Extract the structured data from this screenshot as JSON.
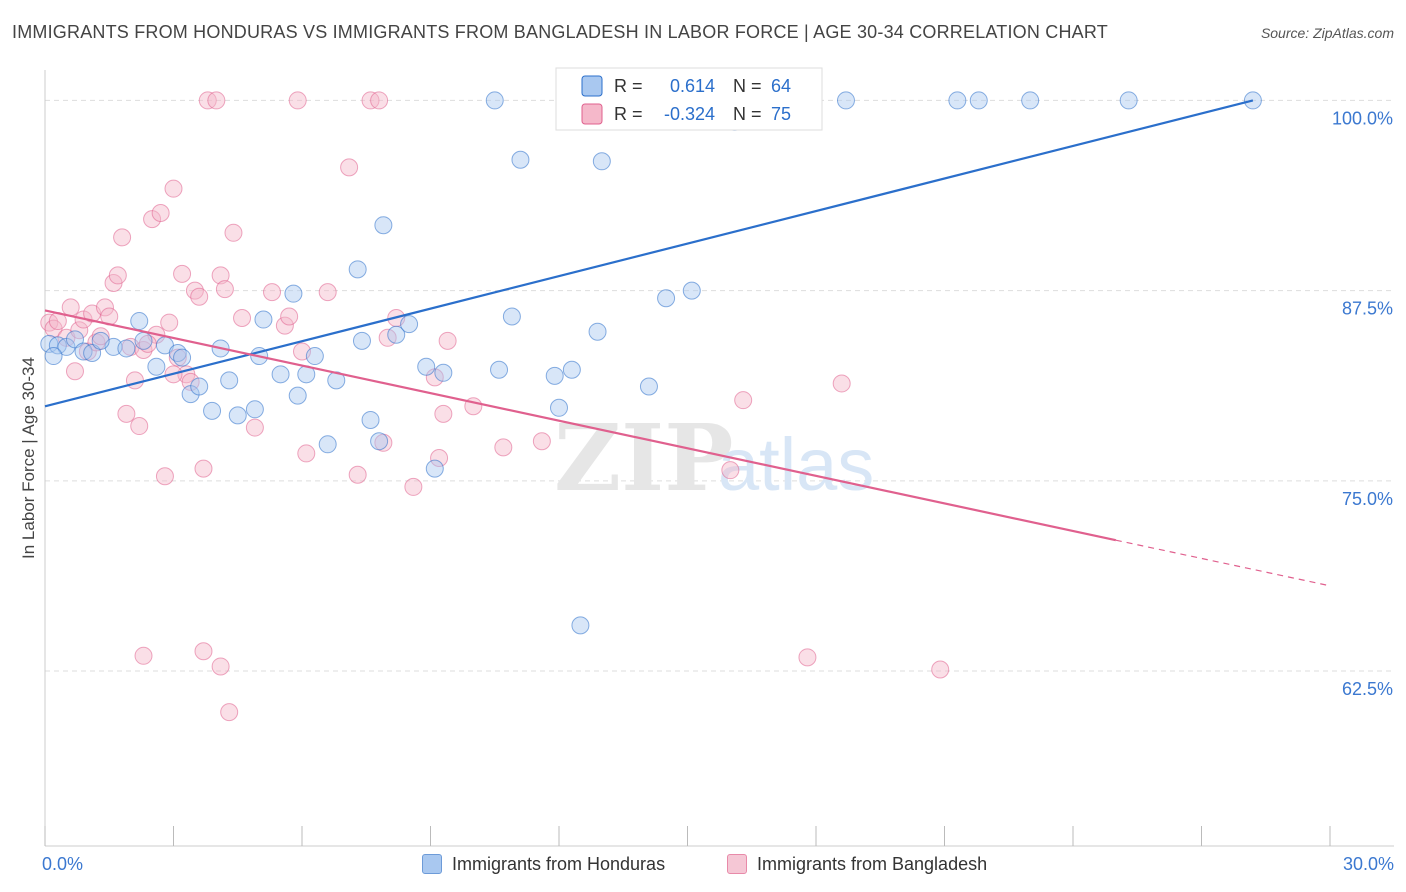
{
  "title": "IMMIGRANTS FROM HONDURAS VS IMMIGRANTS FROM BANGLADESH IN LABOR FORCE | AGE 30-34 CORRELATION CHART",
  "source": "Source: ZipAtlas.com",
  "watermark": {
    "zip": "ZIP",
    "atlas": "atlas"
  },
  "colors": {
    "blue": "#2b6fcb",
    "blue_fill": "#a9c8f0",
    "pink": "#e0608e",
    "pink_fill": "#f5b8ca",
    "axis_label": "#3b78d0",
    "grid": "#dddddd"
  },
  "stats_box": {
    "rows": [
      {
        "r_label": "R =",
        "r_value": "0.614",
        "n_label": "N =",
        "n_value": "64"
      },
      {
        "r_label": "R =",
        "r_value": "-0.324",
        "n_label": "N =",
        "n_value": "75"
      }
    ]
  },
  "legend": {
    "honduras": "Immigrants from Honduras",
    "bangladesh": "Immigrants from Bangladesh"
  },
  "chart_data": {
    "type": "scatter",
    "xlabel": "",
    "ylabel": "In Labor Force | Age 30-34",
    "xlim": [
      0,
      30
    ],
    "ylim": [
      51,
      102
    ],
    "x_tick_labels": [
      {
        "value": 0,
        "label": "0.0%"
      },
      {
        "value": 30,
        "label": "30.0%"
      }
    ],
    "y_tick_labels": [
      {
        "value": 100,
        "label": "100.0%"
      },
      {
        "value": 87.5,
        "label": "87.5%"
      },
      {
        "value": 75,
        "label": "75.0%"
      },
      {
        "value": 62.5,
        "label": "62.5%"
      }
    ],
    "grid": true,
    "legend_position": "bottom-center",
    "series": [
      {
        "name": "Immigrants from Honduras",
        "color": "#2b6fcb",
        "trend": {
          "x": [
            0,
            28.2
          ],
          "y": [
            79.9,
            100
          ]
        },
        "points": [
          [
            0.1,
            84.0
          ],
          [
            0.3,
            83.9
          ],
          [
            0.5,
            83.8
          ],
          [
            0.7,
            84.3
          ],
          [
            0.9,
            83.5
          ],
          [
            1.1,
            83.4
          ],
          [
            1.6,
            83.8
          ],
          [
            1.9,
            83.7
          ],
          [
            2.2,
            85.5
          ],
          [
            2.3,
            84.2
          ],
          [
            2.6,
            82.5
          ],
          [
            2.8,
            83.9
          ],
          [
            3.1,
            83.4
          ],
          [
            3.2,
            83.1
          ],
          [
            3.4,
            80.7
          ],
          [
            3.6,
            81.2
          ],
          [
            3.9,
            79.6
          ],
          [
            4.1,
            83.7
          ],
          [
            4.3,
            81.6
          ],
          [
            4.5,
            79.3
          ],
          [
            4.9,
            79.7
          ],
          [
            5.0,
            83.2
          ],
          [
            5.1,
            85.6
          ],
          [
            5.5,
            82.0
          ],
          [
            5.8,
            87.3
          ],
          [
            5.9,
            80.6
          ],
          [
            6.1,
            82.0
          ],
          [
            6.3,
            83.2
          ],
          [
            6.6,
            77.4
          ],
          [
            6.8,
            81.6
          ],
          [
            7.3,
            88.9
          ],
          [
            7.4,
            84.2
          ],
          [
            7.6,
            79.0
          ],
          [
            7.8,
            77.6
          ],
          [
            7.9,
            91.8
          ],
          [
            8.2,
            84.6
          ],
          [
            8.5,
            85.3
          ],
          [
            8.9,
            82.5
          ],
          [
            9.1,
            75.8
          ],
          [
            9.3,
            82.1
          ],
          [
            10.5,
            100.0
          ],
          [
            10.6,
            82.3
          ],
          [
            10.9,
            85.8
          ],
          [
            11.1,
            96.1
          ],
          [
            11.9,
            81.9
          ],
          [
            12.0,
            79.8
          ],
          [
            12.3,
            82.3
          ],
          [
            12.5,
            65.5
          ],
          [
            12.9,
            84.8
          ],
          [
            13.0,
            96.0
          ],
          [
            14.1,
            81.2
          ],
          [
            14.3,
            100.0
          ],
          [
            14.5,
            87.0
          ],
          [
            15.1,
            87.5
          ],
          [
            16.1,
            98.6
          ],
          [
            17.3,
            100.0
          ],
          [
            18.7,
            100.0
          ],
          [
            21.8,
            100.0
          ],
          [
            21.3,
            100.0
          ],
          [
            23.0,
            100.0
          ],
          [
            25.3,
            100.0
          ],
          [
            28.2,
            100.0
          ],
          [
            0.2,
            83.2
          ],
          [
            1.3,
            84.2
          ]
        ]
      },
      {
        "name": "Immigrants from Bangladesh",
        "color": "#e0608e",
        "trend": {
          "x": [
            0,
            25.0
          ],
          "y": [
            86.2,
            71.1
          ]
        },
        "trend_ext": {
          "x": [
            25.0,
            30.0
          ],
          "y": [
            71.1,
            68.1
          ]
        },
        "points": [
          [
            0.1,
            85.4
          ],
          [
            0.2,
            85.0
          ],
          [
            0.3,
            85.5
          ],
          [
            0.5,
            84.4
          ],
          [
            0.6,
            86.4
          ],
          [
            0.7,
            82.2
          ],
          [
            0.8,
            84.9
          ],
          [
            0.9,
            85.6
          ],
          [
            1.0,
            83.5
          ],
          [
            1.1,
            86.0
          ],
          [
            1.2,
            84.1
          ],
          [
            1.3,
            84.5
          ],
          [
            1.4,
            86.4
          ],
          [
            1.5,
            85.8
          ],
          [
            1.6,
            88.0
          ],
          [
            1.7,
            88.5
          ],
          [
            1.8,
            91.0
          ],
          [
            1.9,
            79.4
          ],
          [
            2.0,
            83.8
          ],
          [
            2.1,
            81.6
          ],
          [
            2.2,
            78.6
          ],
          [
            2.3,
            83.6
          ],
          [
            2.5,
            92.2
          ],
          [
            2.6,
            84.6
          ],
          [
            2.7,
            92.6
          ],
          [
            2.8,
            75.3
          ],
          [
            2.9,
            85.4
          ],
          [
            3.0,
            94.2
          ],
          [
            3.1,
            83.1
          ],
          [
            3.2,
            88.6
          ],
          [
            3.3,
            82.0
          ],
          [
            3.4,
            81.5
          ],
          [
            3.5,
            87.5
          ],
          [
            3.6,
            87.1
          ],
          [
            3.7,
            75.8
          ],
          [
            3.8,
            100.0
          ],
          [
            4.0,
            100.0
          ],
          [
            4.1,
            88.5
          ],
          [
            4.2,
            87.6
          ],
          [
            4.4,
            91.3
          ],
          [
            4.6,
            85.7
          ],
          [
            4.9,
            78.5
          ],
          [
            5.3,
            87.4
          ],
          [
            5.6,
            85.2
          ],
          [
            5.7,
            85.8
          ],
          [
            5.9,
            100.0
          ],
          [
            6.1,
            76.8
          ],
          [
            6.6,
            87.4
          ],
          [
            7.1,
            95.6
          ],
          [
            7.3,
            75.4
          ],
          [
            7.6,
            100.0
          ],
          [
            7.8,
            100.0
          ],
          [
            7.9,
            77.5
          ],
          [
            8.0,
            84.4
          ],
          [
            8.2,
            85.7
          ],
          [
            8.6,
            74.6
          ],
          [
            9.1,
            81.8
          ],
          [
            9.3,
            79.4
          ],
          [
            9.4,
            84.2
          ],
          [
            10.0,
            79.9
          ],
          [
            10.7,
            77.2
          ],
          [
            11.6,
            77.6
          ],
          [
            16.0,
            75.7
          ],
          [
            16.3,
            80.3
          ],
          [
            18.6,
            81.4
          ],
          [
            2.3,
            63.5
          ],
          [
            3.7,
            63.8
          ],
          [
            4.1,
            62.8
          ],
          [
            4.3,
            59.8
          ],
          [
            17.8,
            63.4
          ],
          [
            20.9,
            62.6
          ],
          [
            6.0,
            83.5
          ],
          [
            3.0,
            82.0
          ],
          [
            9.2,
            76.5
          ],
          [
            2.4,
            84.0
          ]
        ]
      }
    ]
  }
}
